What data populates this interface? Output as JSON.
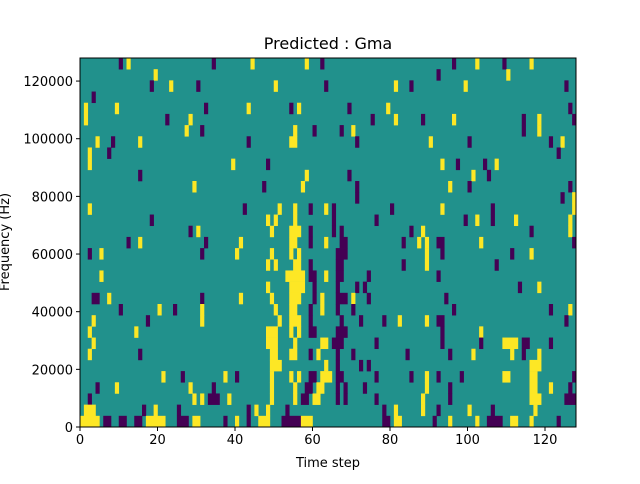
{
  "chart_data": {
    "type": "heatmap",
    "title": "Predicted : Gma",
    "xlabel": "Time step",
    "ylabel": "Frequency (Hz)",
    "xlim": [
      0,
      128
    ],
    "ylim": [
      0,
      128000
    ],
    "xticks": [
      0,
      20,
      40,
      60,
      80,
      100,
      120
    ],
    "yticks": [
      0,
      20000,
      40000,
      60000,
      80000,
      100000,
      120000
    ],
    "xtick_labels": [
      "0",
      "20",
      "40",
      "60",
      "80",
      "100",
      "120"
    ],
    "ytick_labels": [
      "0",
      "20000",
      "40000",
      "60000",
      "80000",
      "100000",
      "120000"
    ],
    "n_time_steps": 128,
    "n_freq_bins": 33,
    "row_order": "highest frequency bin first",
    "class_colors": {
      "0": "#440154",
      "1": "#21918c",
      "2": "#fde725"
    },
    "background_class": 1,
    "rows": [
      {
        "c0": [
          10,
          34,
          62,
          96,
          109
        ],
        "c2": [
          12,
          44,
          58,
          102,
          116
        ]
      },
      {
        "c0": [
          92
        ],
        "c2": [
          19,
          110
        ]
      },
      {
        "c0": [
          18,
          30,
          63,
          85,
          125
        ],
        "c2": [
          23,
          50,
          81,
          99
        ]
      },
      {
        "c0": [
          3
        ],
        "c2": []
      },
      {
        "c0": [
          32,
          54,
          69,
          126
        ],
        "c2": [
          1,
          9,
          43,
          56,
          79
        ]
      },
      {
        "c0": [
          22,
          75,
          88,
          114,
          127
        ],
        "c2": [
          1,
          28,
          81,
          96,
          118
        ]
      },
      {
        "c0": [
          31,
          60,
          67,
          114
        ],
        "c2": [
          27,
          55,
          70,
          118
        ]
      },
      {
        "c0": [
          8,
          43,
          71,
          100,
          121
        ],
        "c2": [
          4,
          15,
          "54-55",
          90,
          124
        ]
      },
      {
        "c0": [
          7,
          123
        ],
        "c2": [
          2
        ]
      },
      {
        "c0": [
          48,
          97,
          104
        ],
        "c2": [
          2,
          39,
          93,
          107
        ]
      },
      {
        "c0": [
          15,
          69,
          105
        ],
        "c2": [
          58,
          101
        ]
      },
      {
        "c0": [
          47,
          71,
          100,
          126
        ],
        "c2": [
          29,
          57,
          95
        ]
      },
      {
        "c0": [
          71,
          124
        ],
        "c2": [
          127
        ]
      },
      {
        "c0": [
          42,
          59,
          65,
          80,
          106
        ],
        "c2": [
          2,
          51,
          55,
          63,
          93,
          127
        ]
      },
      {
        "c0": [
          18,
          65,
          76,
          99,
          106
        ],
        "c2": [
          48,
          50,
          55,
          102,
          112,
          126
        ]
      },
      {
        "c0": [
          28,
          59,
          65,
          67,
          85,
          116
        ],
        "c2": [
          30,
          49,
          "54-55",
          56,
          88,
          126
        ]
      },
      {
        "c0": [
          12,
          32,
          59,
          "67-68",
          83,
          "92-93",
          127
        ],
        "c2": [
          15,
          41,
          "54-55",
          63,
          87,
          89,
          103
        ]
      },
      {
        "c0": [
          2,
          31,
          "66-68",
          93,
          111
        ],
        "c2": [
          5,
          40,
          49,
          54,
          56,
          89,
          116
        ]
      },
      {
        "c0": [
          59,
          "66-67",
          83,
          107
        ],
        "c2": [
          48,
          50,
          "55-56",
          89
        ]
      },
      {
        "c0": [
          "59-60",
          "66-67",
          74,
          92
        ],
        "c2": [
          5,
          "53-57",
          63
        ]
      },
      {
        "c0": [
          60,
          66,
          71,
          73,
          113
        ],
        "c2": [
          48,
          "54-57",
          118
        ]
      },
      {
        "c0": [
          "3-4",
          31,
          60,
          "66-68",
          74,
          94
        ],
        "c2": [
          7,
          41,
          49,
          "54-56",
          62,
          70
        ]
      },
      {
        "c0": [
          10,
          24,
          59,
          66,
          70,
          96,
          121
        ],
        "c2": [
          20,
          31,
          50,
          "54-55",
          62,
          126
        ]
      },
      {
        "c0": [
          17,
          59,
          67,
          72,
          78,
          "92-93",
          125
        ],
        "c2": [
          3,
          31,
          51,
          "54-56",
          82,
          89
        ]
      },
      {
        "c0": [
          "59-60",
          "66-68",
          93
        ],
        "c2": [
          2,
          14,
          "48-50",
          54,
          56,
          103
        ]
      },
      {
        "c0": [
          "65-67",
          76,
          93,
          103,
          "114-115",
          121
        ],
        "c2": [
          3,
          "48-50",
          55,
          "62-63",
          "109-112"
        ]
      },
      {
        "c0": [
          15,
          59,
          66,
          70,
          84,
          95,
          114
        ],
        "c2": [
          2,
          "49-50",
          "54-55",
          61,
          101,
          111,
          118
        ]
      },
      {
        "c0": [
          66,
          72,
          74
        ],
        "c2": [
          "49-51",
          63,
          "116-118"
        ]
      },
      {
        "c0": [
          26,
          40,
          "59-60",
          "66-67",
          76,
          85,
          92,
          98,
          127
        ],
        "c2": [
          21,
          37,
          49,
          54,
          56,
          "62-64",
          89,
          "109-110",
          "116-117"
        ]
      },
      {
        "c0": [
          4,
          34,
          "58-59",
          66,
          68,
          73,
          95,
          126
        ],
        "c2": [
          9,
          28,
          49,
          55,
          "61-62",
          89,
          "116-117",
          121
        ]
      },
      {
        "c0": [
          2,
          "33-35",
          "57-58",
          66,
          68,
          76,
          95,
          "125-127"
        ],
        "c2": [
          29,
          31,
          38,
          49,
          55,
          "60-61",
          88,
          "116-118"
        ]
      },
      {
        "c0": [
          16,
          25,
          43,
          53,
          78,
          92,
          106
        ],
        "c2": [
          "1-3",
          19,
          45,
          48,
          81,
          88,
          100,
          117
        ]
      },
      {
        "c0": [
          "6-7",
          "10-11",
          "14-15",
          "25-27",
          37,
          43,
          "52-56",
          "78-79",
          91,
          "105-108",
          123
        ],
        "c2": [
          "0-4",
          "17-21",
          "29-30",
          40,
          "46-48",
          "57-59",
          "81-82",
          95,
          102,
          "111-112",
          116
        ]
      }
    ]
  }
}
